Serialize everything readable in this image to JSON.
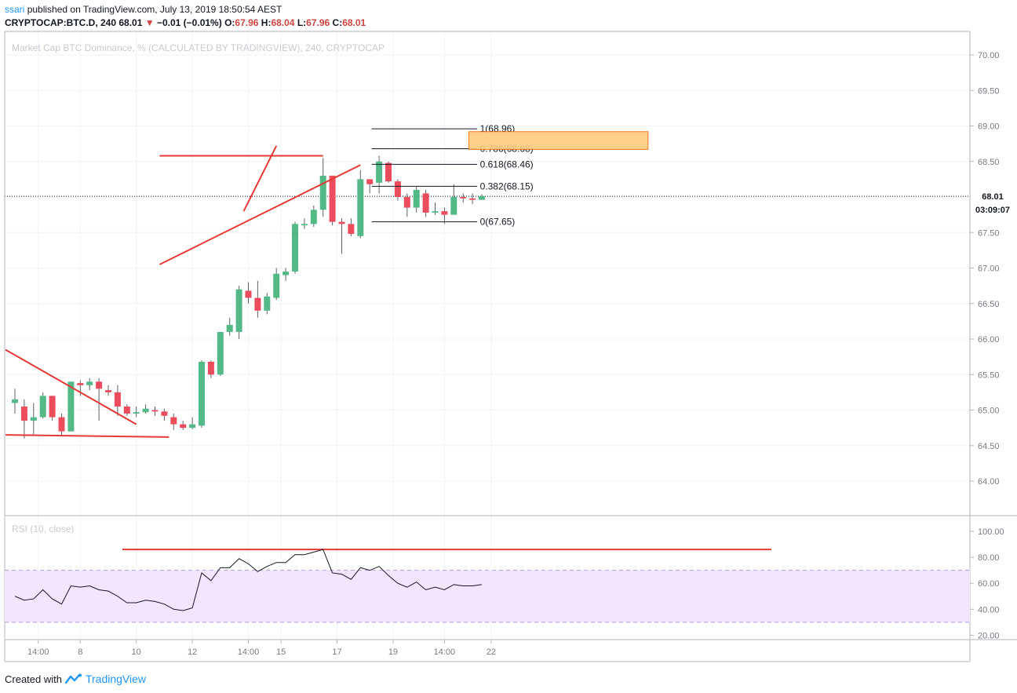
{
  "header": {
    "user": "ssari",
    "published_text": "published on TradingView.com, July 13, 2019 18:50:54 AEST",
    "symbol": "CRYPTOCAP:BTC.D, 240",
    "last": "68.01",
    "change_arrow": "▼",
    "change": "−0.01 (−0.01%)",
    "o_label": "O:",
    "o_value": "67.96",
    "h_label": "H:",
    "h_value": "68.04",
    "l_label": "L:",
    "l_value": "67.96",
    "c_label": "C:",
    "c_value": "68.01"
  },
  "footer": {
    "created_with": "Created with",
    "brand": "TradingView"
  },
  "colors": {
    "up": "#53b987",
    "down": "#eb4d5c",
    "trendline": "#e53935",
    "zone": "#ffcc80",
    "rsi_band": "#f3e5fc"
  },
  "chart_data": [
    {
      "type": "candlestick",
      "title": "Market Cap BTC Dominance, % (CALCULATED BY TRADINGVIEW), 240, CRYPTOCAP",
      "price_axis": [
        "70.00",
        "69.50",
        "69.00",
        "68.50",
        "68.00",
        "67.50",
        "67.00",
        "66.50",
        "66.00",
        "65.50",
        "65.00",
        "64.50",
        "64.00"
      ],
      "ylim": [
        63.6,
        70.3
      ],
      "current_price_label": "68.01",
      "countdown_label": "03:09:07",
      "candles": [
        {
          "o": 65.1,
          "h": 65.3,
          "l": 64.95,
          "c": 65.15
        },
        {
          "o": 65.05,
          "h": 65.15,
          "l": 64.6,
          "c": 64.85
        },
        {
          "o": 64.85,
          "h": 65.1,
          "l": 64.65,
          "c": 64.9
        },
        {
          "o": 64.9,
          "h": 65.25,
          "l": 64.88,
          "c": 65.2
        },
        {
          "o": 65.2,
          "h": 65.2,
          "l": 64.85,
          "c": 64.9
        },
        {
          "o": 64.9,
          "h": 64.95,
          "l": 64.65,
          "c": 64.7
        },
        {
          "o": 64.7,
          "h": 65.4,
          "l": 64.7,
          "c": 65.4
        },
        {
          "o": 65.38,
          "h": 65.42,
          "l": 65.2,
          "c": 65.35
        },
        {
          "o": 65.35,
          "h": 65.45,
          "l": 65.28,
          "c": 65.4
        },
        {
          "o": 65.4,
          "h": 65.45,
          "l": 64.85,
          "c": 65.3
        },
        {
          "o": 65.28,
          "h": 65.35,
          "l": 65.2,
          "c": 65.25
        },
        {
          "o": 65.25,
          "h": 65.35,
          "l": 64.92,
          "c": 65.05
        },
        {
          "o": 65.05,
          "h": 65.08,
          "l": 64.92,
          "c": 64.95
        },
        {
          "o": 64.95,
          "h": 65.05,
          "l": 64.9,
          "c": 64.97
        },
        {
          "o": 64.97,
          "h": 65.08,
          "l": 64.95,
          "c": 65.02
        },
        {
          "o": 65.0,
          "h": 65.05,
          "l": 64.92,
          "c": 64.98
        },
        {
          "o": 64.98,
          "h": 65.02,
          "l": 64.85,
          "c": 64.92
        },
        {
          "o": 64.9,
          "h": 64.95,
          "l": 64.72,
          "c": 64.8
        },
        {
          "o": 64.8,
          "h": 64.85,
          "l": 64.72,
          "c": 64.75
        },
        {
          "o": 64.75,
          "h": 64.9,
          "l": 64.73,
          "c": 64.8
        },
        {
          "o": 64.78,
          "h": 65.7,
          "l": 64.75,
          "c": 65.68
        },
        {
          "o": 65.68,
          "h": 65.7,
          "l": 65.45,
          "c": 65.5
        },
        {
          "o": 65.5,
          "h": 66.1,
          "l": 65.48,
          "c": 66.1
        },
        {
          "o": 66.1,
          "h": 66.3,
          "l": 66.05,
          "c": 66.2
        },
        {
          "o": 66.1,
          "h": 66.75,
          "l": 66.0,
          "c": 66.7
        },
        {
          "o": 66.68,
          "h": 66.8,
          "l": 66.5,
          "c": 66.58
        },
        {
          "o": 66.58,
          "h": 66.82,
          "l": 66.3,
          "c": 66.4
        },
        {
          "o": 66.4,
          "h": 66.65,
          "l": 66.35,
          "c": 66.6
        },
        {
          "o": 66.58,
          "h": 67.0,
          "l": 66.55,
          "c": 66.92
        },
        {
          "o": 66.9,
          "h": 67.0,
          "l": 66.82,
          "c": 66.95
        },
        {
          "o": 66.95,
          "h": 67.65,
          "l": 66.92,
          "c": 67.62
        },
        {
          "o": 67.6,
          "h": 67.7,
          "l": 67.55,
          "c": 67.62
        },
        {
          "o": 67.62,
          "h": 67.88,
          "l": 67.58,
          "c": 67.82
        },
        {
          "o": 67.82,
          "h": 68.55,
          "l": 67.72,
          "c": 68.3
        },
        {
          "o": 68.3,
          "h": 68.3,
          "l": 67.6,
          "c": 67.65
        },
        {
          "o": 67.65,
          "h": 67.7,
          "l": 67.2,
          "c": 67.62
        },
        {
          "o": 67.62,
          "h": 67.7,
          "l": 67.45,
          "c": 67.48
        },
        {
          "o": 67.45,
          "h": 68.38,
          "l": 67.42,
          "c": 68.25
        },
        {
          "o": 68.25,
          "h": 68.25,
          "l": 68.05,
          "c": 68.18
        },
        {
          "o": 68.2,
          "h": 68.58,
          "l": 68.05,
          "c": 68.5
        },
        {
          "o": 68.48,
          "h": 68.5,
          "l": 68.2,
          "c": 68.22
        },
        {
          "o": 68.22,
          "h": 68.25,
          "l": 67.95,
          "c": 68.0
        },
        {
          "o": 68.0,
          "h": 68.05,
          "l": 67.72,
          "c": 67.85
        },
        {
          "o": 67.85,
          "h": 68.15,
          "l": 67.78,
          "c": 68.1
        },
        {
          "o": 68.05,
          "h": 68.1,
          "l": 67.72,
          "c": 67.78
        },
        {
          "o": 67.78,
          "h": 67.92,
          "l": 67.75,
          "c": 67.8
        },
        {
          "o": 67.8,
          "h": 67.85,
          "l": 67.62,
          "c": 67.75
        },
        {
          "o": 67.75,
          "h": 68.18,
          "l": 67.75,
          "c": 68.0
        },
        {
          "o": 68.0,
          "h": 68.05,
          "l": 67.92,
          "c": 67.98
        },
        {
          "o": 67.98,
          "h": 68.05,
          "l": 67.9,
          "c": 67.96
        },
        {
          "o": 67.96,
          "h": 68.04,
          "l": 67.96,
          "c": 68.01
        }
      ],
      "fibonacci": [
        {
          "label": "1(68.96)",
          "level": 68.96
        },
        {
          "label": "0.786(68.68)",
          "level": 68.68
        },
        {
          "label": "0.618(68.46)",
          "level": 68.46
        },
        {
          "label": "0.382(68.15)",
          "level": 68.15
        },
        {
          "label": "0(67.65)",
          "level": 67.65
        }
      ],
      "target_zone": {
        "top": 68.92,
        "bottom": 68.67
      },
      "trendlines": [
        {
          "from": [
            -1,
            65.85
          ],
          "to": [
            13,
            64.8
          ]
        },
        {
          "from": [
            -1,
            64.65
          ],
          "to": [
            16.5,
            64.62
          ]
        },
        {
          "from": [
            15.5,
            68.58
          ],
          "to": [
            33,
            68.58
          ]
        },
        {
          "from": [
            15.5,
            67.05
          ],
          "to": [
            37,
            68.45
          ]
        },
        {
          "from": [
            24.5,
            67.8
          ],
          "to": [
            28,
            68.72
          ]
        }
      ]
    },
    {
      "type": "line",
      "title": "RSI (10, close)",
      "rsi_axis": [
        "100.00",
        "80.00",
        "60.00",
        "40.00",
        "20.00"
      ],
      "ylim": [
        12,
        105
      ],
      "bands": {
        "upper": 70,
        "lower": 30
      },
      "values": [
        50,
        47,
        48,
        55,
        48,
        44,
        58,
        57,
        58,
        55,
        54,
        50,
        45,
        45,
        47,
        46,
        44,
        40,
        39,
        41,
        68,
        62,
        72,
        72,
        79,
        75,
        69,
        73,
        76,
        76,
        82,
        82,
        84,
        86,
        68,
        67,
        63,
        72,
        70,
        73,
        66,
        60,
        57,
        61,
        55,
        57,
        55,
        59,
        58,
        58,
        59
      ],
      "resistance": {
        "from": 11.5,
        "to": 40.5,
        "level": 86
      }
    }
  ],
  "time_axis": [
    {
      "label": "14:00",
      "i": 2.5
    },
    {
      "label": "8",
      "i": 7
    },
    {
      "label": "10",
      "i": 13
    },
    {
      "label": "12",
      "i": 19
    },
    {
      "label": "14:00",
      "i": 25
    },
    {
      "label": "15",
      "i": 28.5
    },
    {
      "label": "17",
      "i": 34.5
    },
    {
      "label": "19",
      "i": 40.5
    },
    {
      "label": "14:00",
      "i": 46
    },
    {
      "label": "22",
      "i": 51
    }
  ]
}
